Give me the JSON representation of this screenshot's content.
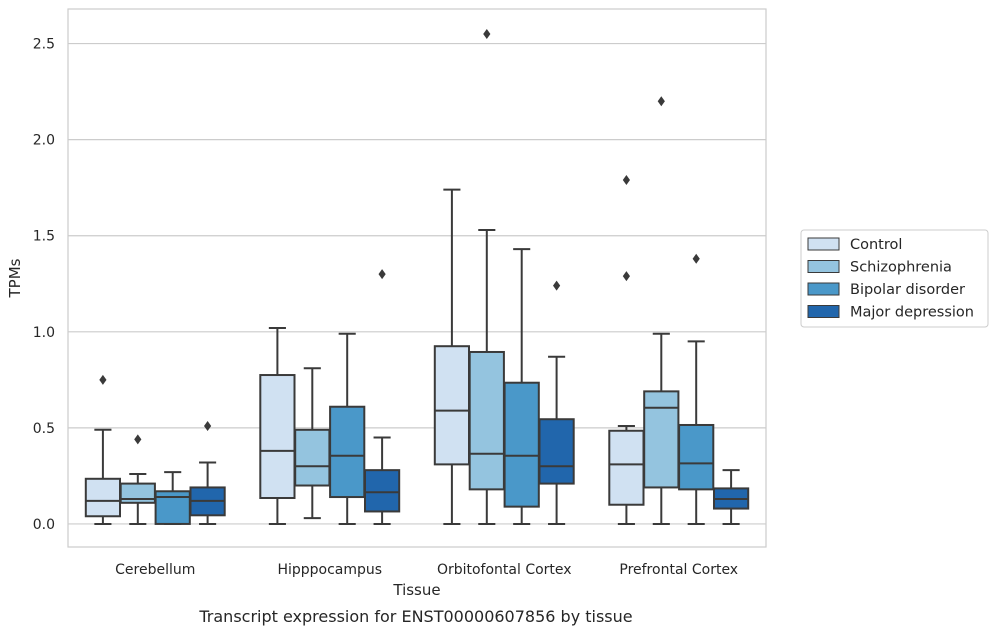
{
  "chart_data": {
    "type": "box",
    "title": "",
    "caption": "Transcript expression for ENST00000607856 by tissue",
    "xlabel": "Tissue",
    "ylabel": "TPMs",
    "ylim": [
      -0.12,
      2.68
    ],
    "yticks": [
      "0.0",
      "0.5",
      "1.0",
      "1.5",
      "2.0",
      "2.5"
    ],
    "grid": true,
    "legend": "right",
    "categories": [
      "Cerebellum",
      "Hipppocampus",
      "Orbitofontal Cortex",
      "Prefrontal Cortex"
    ],
    "series": [
      {
        "name": "Control",
        "color": "#d0e1f2",
        "boxes": [
          {
            "whislo": 0.0,
            "q1": 0.04,
            "med": 0.12,
            "q3": 0.235,
            "whishi": 0.49,
            "fliers": [
              0.75
            ]
          },
          {
            "whislo": 0.0,
            "q1": 0.135,
            "med": 0.38,
            "q3": 0.775,
            "whishi": 1.02,
            "fliers": []
          },
          {
            "whislo": 0.0,
            "q1": 0.31,
            "med": 0.59,
            "q3": 0.925,
            "whishi": 1.74,
            "fliers": []
          },
          {
            "whislo": 0.0,
            "q1": 0.1,
            "med": 0.31,
            "q3": 0.485,
            "whishi": 0.51,
            "fliers": [
              1.29,
              1.79
            ]
          }
        ]
      },
      {
        "name": "Schizophrenia",
        "color": "#94c4df",
        "boxes": [
          {
            "whislo": 0.0,
            "q1": 0.11,
            "med": 0.13,
            "q3": 0.21,
            "whishi": 0.26,
            "fliers": [
              0.44
            ]
          },
          {
            "whislo": 0.03,
            "q1": 0.2,
            "med": 0.3,
            "q3": 0.49,
            "whishi": 0.81,
            "fliers": []
          },
          {
            "whislo": 0.0,
            "q1": 0.18,
            "med": 0.365,
            "q3": 0.895,
            "whishi": 1.53,
            "fliers": [
              2.55
            ]
          },
          {
            "whislo": 0.0,
            "q1": 0.19,
            "med": 0.605,
            "q3": 0.69,
            "whishi": 0.99,
            "fliers": [
              2.2
            ]
          }
        ]
      },
      {
        "name": "Bipolar disorder",
        "color": "#4a98c9",
        "boxes": [
          {
            "whislo": 0.0,
            "q1": 0.0,
            "med": 0.14,
            "q3": 0.17,
            "whishi": 0.27,
            "fliers": []
          },
          {
            "whislo": 0.0,
            "q1": 0.14,
            "med": 0.355,
            "q3": 0.61,
            "whishi": 0.99,
            "fliers": []
          },
          {
            "whislo": 0.0,
            "q1": 0.09,
            "med": 0.355,
            "q3": 0.735,
            "whishi": 1.43,
            "fliers": []
          },
          {
            "whislo": 0.0,
            "q1": 0.18,
            "med": 0.315,
            "q3": 0.515,
            "whishi": 0.95,
            "fliers": [
              1.38
            ]
          }
        ]
      },
      {
        "name": "Major depression",
        "color": "#2166ac",
        "boxes": [
          {
            "whislo": 0.0,
            "q1": 0.045,
            "med": 0.12,
            "q3": 0.19,
            "whishi": 0.32,
            "fliers": [
              0.51
            ]
          },
          {
            "whislo": 0.0,
            "q1": 0.065,
            "med": 0.165,
            "q3": 0.28,
            "whishi": 0.45,
            "fliers": [
              1.3
            ]
          },
          {
            "whislo": 0.0,
            "q1": 0.21,
            "med": 0.3,
            "q3": 0.545,
            "whishi": 0.87,
            "fliers": [
              1.24
            ]
          },
          {
            "whislo": 0.0,
            "q1": 0.08,
            "med": 0.13,
            "q3": 0.185,
            "whishi": 0.28,
            "fliers": []
          }
        ]
      }
    ]
  }
}
